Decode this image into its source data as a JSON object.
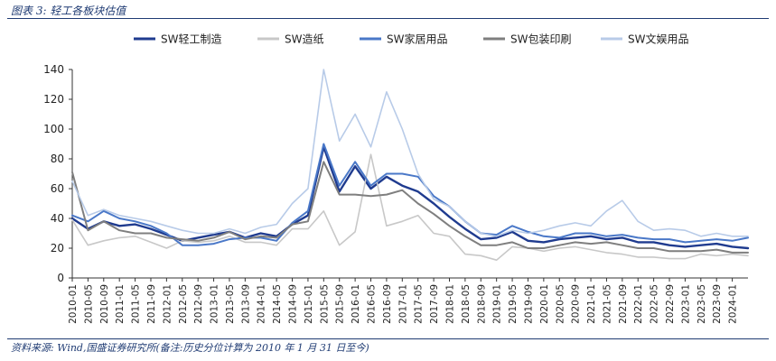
{
  "caption": "图表 3:  轻工各板块估值",
  "source": "资料来源:  Wind,国盛证券研究所(备注:历史分位计算为 2010 年 1 月 31 日至今)",
  "chart_data": {
    "type": "line",
    "title": "",
    "xlabel": "",
    "ylabel": "",
    "ylim": [
      0,
      140
    ],
    "yticks": [
      0,
      20,
      40,
      60,
      80,
      100,
      120,
      140
    ],
    "grid": false,
    "legend_position": "top",
    "x_tick_labels": [
      "2010-01",
      "2010-05",
      "2010-09",
      "2011-01",
      "2011-05",
      "2011-09",
      "2012-01",
      "2012-05",
      "2012-09",
      "2013-01",
      "2013-05",
      "2013-09",
      "2014-01",
      "2014-05",
      "2014-09",
      "2015-01",
      "2015-05",
      "2015-09",
      "2016-01",
      "2016-05",
      "2016-09",
      "2017-01",
      "2017-05",
      "2017-09",
      "2018-01",
      "2018-05",
      "2018-09",
      "2019-01",
      "2019-05",
      "2019-09",
      "2020-01",
      "2020-05",
      "2020-09",
      "2021-01",
      "2021-05",
      "2021-09",
      "2022-01",
      "2022-05",
      "2022-09",
      "2023-01",
      "2023-05",
      "2023-09",
      "2024-01"
    ],
    "x": [
      "2010-01",
      "2010-05",
      "2010-09",
      "2011-01",
      "2011-05",
      "2011-09",
      "2012-01",
      "2012-05",
      "2012-09",
      "2013-01",
      "2013-05",
      "2013-09",
      "2014-01",
      "2014-05",
      "2014-09",
      "2015-01",
      "2015-05",
      "2015-09",
      "2016-01",
      "2016-05",
      "2016-09",
      "2017-01",
      "2017-05",
      "2017-09",
      "2018-01",
      "2018-05",
      "2018-09",
      "2019-01",
      "2019-05",
      "2019-09",
      "2020-01",
      "2020-05",
      "2020-09",
      "2021-01",
      "2021-05",
      "2021-09",
      "2022-01",
      "2022-05",
      "2022-09",
      "2023-01",
      "2023-05",
      "2023-09",
      "2024-01",
      "2024-04"
    ],
    "series": [
      {
        "name": "SW轻工制造",
        "color": "#1f3b8f",
        "width": 2.4,
        "values": [
          40,
          33,
          38,
          35,
          36,
          33,
          29,
          25,
          27,
          29,
          31,
          27,
          30,
          28,
          36,
          42,
          88,
          58,
          75,
          60,
          68,
          62,
          58,
          50,
          41,
          33,
          26,
          27,
          31,
          25,
          24,
          26,
          27,
          28,
          26,
          27,
          24,
          24,
          22,
          21,
          22,
          23,
          21,
          20
        ]
      },
      {
        "name": "SW造纸",
        "color": "#c8c8c8",
        "width": 1.6,
        "values": [
          39,
          22,
          25,
          27,
          28,
          24,
          20,
          25,
          24,
          25,
          28,
          24,
          24,
          22,
          33,
          33,
          45,
          22,
          31,
          83,
          35,
          38,
          42,
          30,
          28,
          16,
          15,
          12,
          21,
          20,
          18,
          20,
          21,
          19,
          17,
          16,
          14,
          14,
          13,
          13,
          16,
          15,
          16,
          15
        ]
      },
      {
        "name": "SW家居用品",
        "color": "#4a78c8",
        "width": 2.0,
        "values": [
          42,
          38,
          45,
          40,
          38,
          35,
          30,
          22,
          22,
          23,
          26,
          27,
          27,
          25,
          37,
          45,
          90,
          62,
          78,
          62,
          70,
          70,
          68,
          55,
          48,
          38,
          30,
          29,
          35,
          31,
          28,
          27,
          30,
          30,
          28,
          29,
          27,
          26,
          26,
          24,
          25,
          26,
          25,
          27
        ]
      },
      {
        "name": "SW包装印刷",
        "color": "#7f7f7f",
        "width": 2.0,
        "values": [
          71,
          32,
          38,
          32,
          30,
          30,
          27,
          26,
          25,
          27,
          31,
          26,
          28,
          27,
          36,
          38,
          78,
          56,
          56,
          55,
          56,
          59,
          50,
          43,
          35,
          28,
          22,
          22,
          24,
          20,
          20,
          22,
          24,
          23,
          24,
          22,
          20,
          20,
          18,
          18,
          18,
          19,
          17,
          17
        ]
      },
      {
        "name": "SW文娱用品",
        "color": "#b8cbe8",
        "width": 1.6,
        "values": [
          65,
          42,
          46,
          42,
          40,
          38,
          35,
          32,
          30,
          30,
          33,
          30,
          34,
          36,
          50,
          60,
          140,
          92,
          110,
          88,
          125,
          100,
          70,
          53,
          48,
          38,
          30,
          28,
          32,
          30,
          32,
          35,
          37,
          35,
          45,
          52,
          38,
          32,
          33,
          32,
          28,
          30,
          28,
          28
        ]
      }
    ]
  }
}
